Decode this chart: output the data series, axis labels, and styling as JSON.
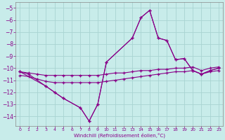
{
  "xlabel": "Windchill (Refroidissement éolien,°C)",
  "bg_color": "#c8ecea",
  "grid_color": "#a8d4d2",
  "line_color": "#880088",
  "marker": "+",
  "markersize": 3,
  "linewidth": 0.8,
  "xlim": [
    -0.5,
    23.5
  ],
  "ylim": [
    -14.8,
    -4.5
  ],
  "yticks": [
    -14,
    -13,
    -12,
    -11,
    -10,
    -9,
    -8,
    -7,
    -6,
    -5
  ],
  "xticks": [
    0,
    1,
    2,
    3,
    4,
    5,
    6,
    7,
    8,
    9,
    10,
    11,
    12,
    13,
    14,
    15,
    16,
    17,
    18,
    19,
    20,
    21,
    22,
    23
  ],
  "line1_x": [
    0,
    1,
    3,
    4,
    5,
    7,
    8,
    9,
    10,
    13,
    14,
    15,
    16,
    17,
    18,
    19,
    20,
    21,
    22,
    23
  ],
  "line1_y": [
    -10.3,
    -10.5,
    -11.5,
    -12.0,
    -12.5,
    -13.3,
    -14.4,
    -13.0,
    -9.5,
    -7.5,
    -5.8,
    -5.2,
    -7.5,
    -7.7,
    -9.3,
    -9.2,
    -10.2,
    -10.5,
    -10.2,
    -10.0
  ],
  "line2_x": [
    0,
    3,
    4,
    5,
    7,
    8,
    9,
    10,
    13,
    14,
    15,
    16,
    17,
    18,
    19,
    20,
    21,
    22,
    23
  ],
  "line2_y": [
    -10.3,
    -11.5,
    -12.0,
    -12.5,
    -13.3,
    -14.4,
    -13.0,
    -9.5,
    -7.5,
    -5.8,
    -5.2,
    -7.5,
    -7.7,
    -9.3,
    -9.2,
    -10.2,
    -10.5,
    -10.2,
    -10.0
  ],
  "line3_x": [
    0,
    1,
    2,
    3,
    4,
    5,
    6,
    7,
    8,
    9,
    10,
    11,
    12,
    13,
    14,
    15,
    16,
    17,
    18,
    19,
    20,
    21,
    22,
    23
  ],
  "line3_y": [
    -10.3,
    -10.4,
    -10.5,
    -10.6,
    -10.6,
    -10.6,
    -10.6,
    -10.6,
    -10.6,
    -10.6,
    -10.5,
    -10.4,
    -10.4,
    -10.3,
    -10.2,
    -10.2,
    -10.1,
    -10.1,
    -10.0,
    -10.0,
    -9.9,
    -10.2,
    -10.0,
    -9.9
  ],
  "line4_x": [
    0,
    1,
    2,
    3,
    4,
    5,
    6,
    7,
    8,
    9,
    10,
    11,
    12,
    13,
    14,
    15,
    16,
    17,
    18,
    19,
    20,
    21,
    22,
    23
  ],
  "line4_y": [
    -10.6,
    -10.7,
    -10.9,
    -11.1,
    -11.2,
    -11.2,
    -11.2,
    -11.2,
    -11.2,
    -11.2,
    -11.1,
    -11.0,
    -10.9,
    -10.8,
    -10.7,
    -10.6,
    -10.5,
    -10.4,
    -10.3,
    -10.3,
    -10.2,
    -10.5,
    -10.3,
    -10.2
  ]
}
